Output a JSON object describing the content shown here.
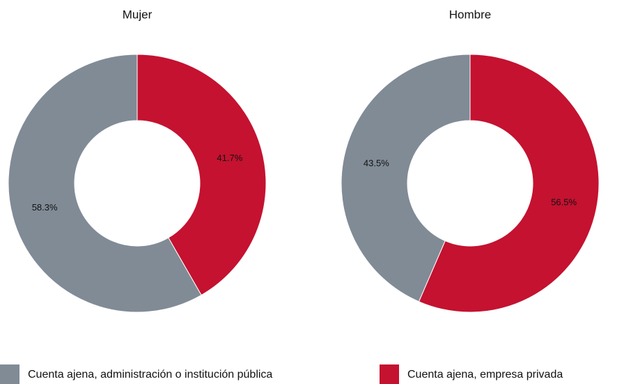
{
  "chart_data": [
    {
      "type": "pie",
      "title": "Mujer",
      "categories": [
        "Cuenta ajena, administración o institución pública",
        "Cuenta ajena, empresa privada"
      ],
      "values": [
        58.3,
        41.7
      ],
      "value_labels": [
        "58.3%",
        "41.7%"
      ],
      "colors": [
        "#808b96",
        "#c41230"
      ],
      "legend": "bottom"
    },
    {
      "type": "pie",
      "title": "Hombre",
      "categories": [
        "Cuenta ajena, administración o institución pública",
        "Cuenta ajena, empresa privada"
      ],
      "values": [
        43.5,
        56.5
      ],
      "value_labels": [
        "43.5%",
        "56.5%"
      ],
      "colors": [
        "#808b96",
        "#c41230"
      ],
      "legend": "bottom"
    }
  ]
}
